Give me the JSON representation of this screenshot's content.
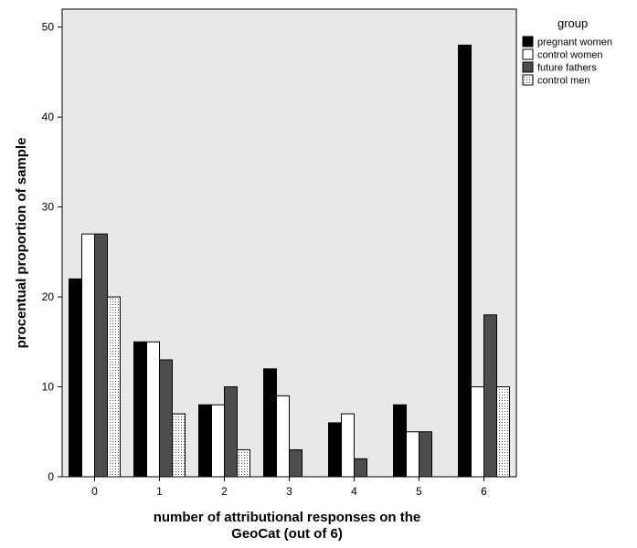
{
  "chart_data": {
    "type": "bar",
    "title": "",
    "xlabel": "number of attributional responses on the GeoCat (out of 6)",
    "xlabel_lines": [
      "number of attributional responses on the",
      "GeoCat (out of 6)"
    ],
    "ylabel": "procentual proportion of sample",
    "categories": [
      "0",
      "1",
      "2",
      "3",
      "4",
      "5",
      "6"
    ],
    "ylim": [
      0,
      52
    ],
    "yticks": [
      0,
      10,
      20,
      30,
      40,
      50
    ],
    "grid": false,
    "legend": {
      "title": "group",
      "placement": "top-right, outside plot"
    },
    "series": [
      {
        "name": "pregnant women",
        "values": [
          22,
          15,
          8,
          12,
          6,
          8,
          48
        ],
        "color": "#000000",
        "pattern": "solid"
      },
      {
        "name": "control women",
        "values": [
          27,
          15,
          8,
          9,
          7,
          5,
          10
        ],
        "color": "#ffffff",
        "pattern": "solid"
      },
      {
        "name": "future fathers",
        "values": [
          27,
          13,
          10,
          3,
          2,
          5,
          18
        ],
        "color": "#4d4d4d",
        "pattern": "solid"
      },
      {
        "name": "control men",
        "values": [
          20,
          7,
          3,
          0,
          0,
          0,
          10
        ],
        "color": "#ffffff",
        "pattern": "dotted"
      }
    ],
    "plot_background": "#e8e8e8"
  }
}
